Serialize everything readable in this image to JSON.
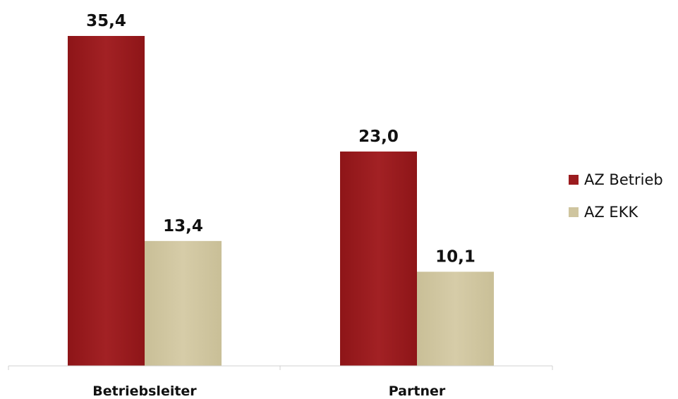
{
  "chart_data": {
    "type": "bar",
    "categories": [
      "Betriebsleiter",
      "Partner"
    ],
    "series": [
      {
        "name": "AZ Betrieb",
        "values": [
          35.4,
          23.0
        ],
        "labels": [
          "35,4",
          "23,0"
        ],
        "color": "#9b1c1f"
      },
      {
        "name": "AZ EKK",
        "values": [
          13.4,
          10.1
        ],
        "labels": [
          "13,4",
          "10,1"
        ],
        "color": "#cfc59f"
      }
    ],
    "ylim": [
      0,
      35.4
    ],
    "grid": false,
    "legend_position": "right",
    "title": "",
    "xlabel": "",
    "ylabel": ""
  }
}
